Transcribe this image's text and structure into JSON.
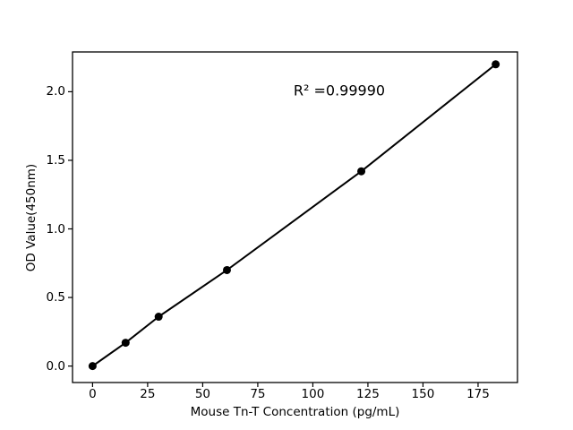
{
  "chart_data": {
    "type": "line",
    "title": "",
    "xlabel": "Mouse Tn-T Concentration (pg/mL)",
    "ylabel": "OD Value(450nm)",
    "x": [
      0,
      15,
      30,
      61,
      122,
      183
    ],
    "y": [
      0.0,
      0.17,
      0.36,
      0.7,
      1.42,
      2.2
    ],
    "annotation": {
      "text": "R² =0.99990",
      "x": 112,
      "y": 2.01
    },
    "r_squared": 0.9999,
    "xticks": [
      0,
      25,
      50,
      75,
      100,
      125,
      150,
      175
    ],
    "xtick_labels": [
      "0",
      "25",
      "50",
      "75",
      "100",
      "125",
      "150",
      "175"
    ],
    "yticks": [
      0.0,
      0.5,
      1.0,
      1.5,
      2.0
    ],
    "ytick_labels": [
      "0.0",
      "0.5",
      "1.0",
      "1.5",
      "2.0"
    ],
    "xlim": [
      -9.1,
      192.9
    ],
    "ylim": [
      -0.12,
      2.29
    ],
    "grid": false,
    "legend": null,
    "line_color": "#000000",
    "marker_color": "#000000",
    "marker_shape": "circle",
    "background": "#ffffff"
  }
}
